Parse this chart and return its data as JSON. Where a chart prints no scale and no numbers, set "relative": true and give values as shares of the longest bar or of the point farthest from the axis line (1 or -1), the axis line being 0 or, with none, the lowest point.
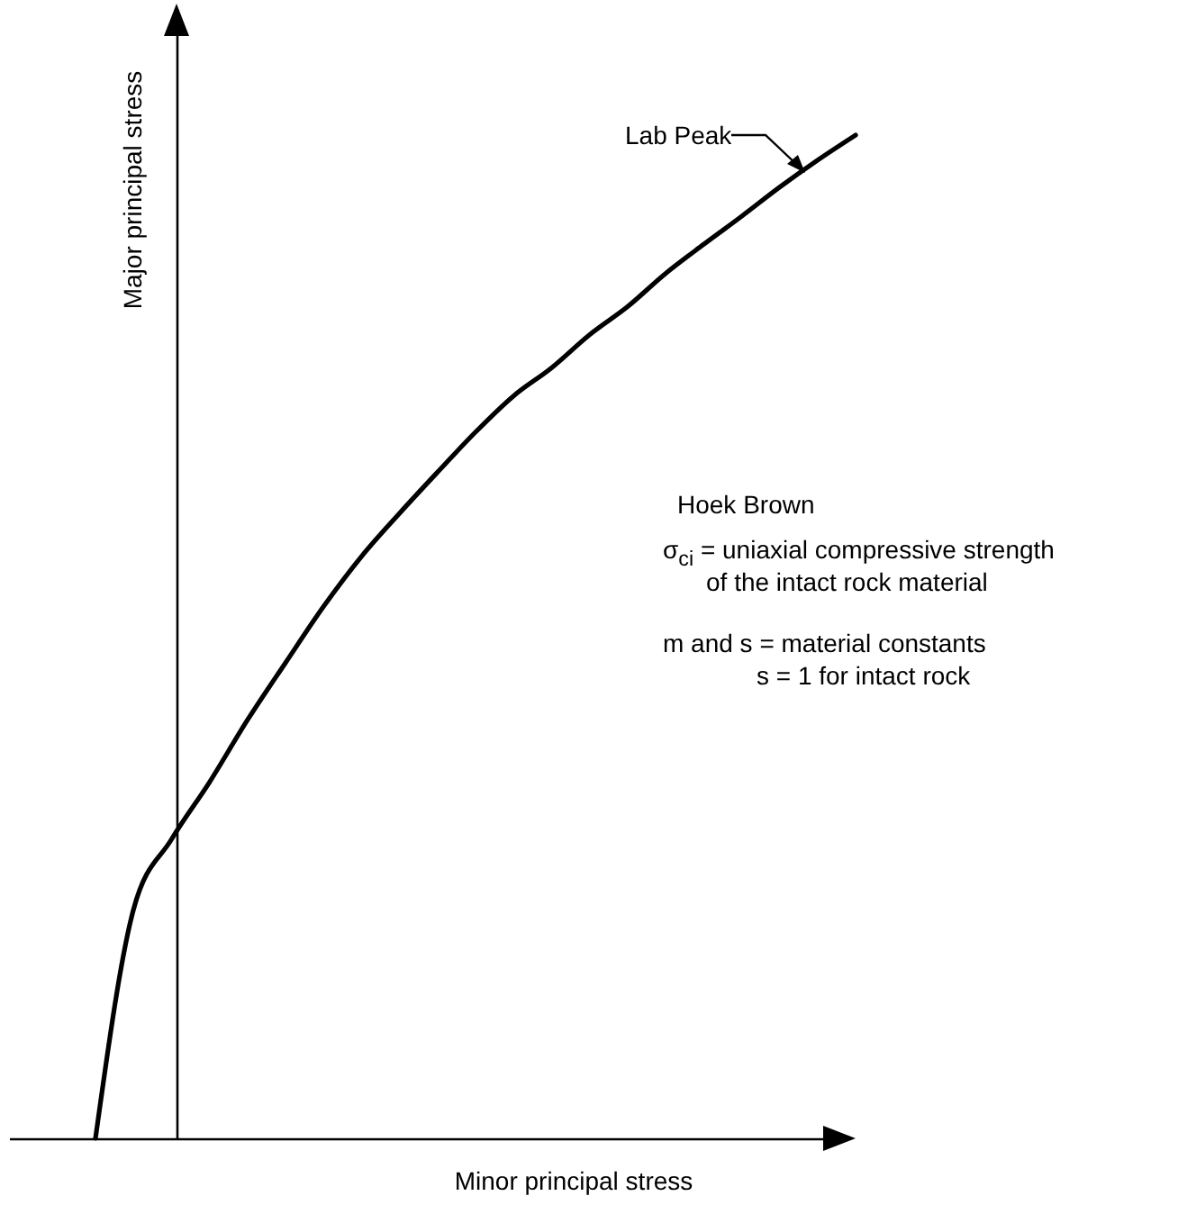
{
  "chart_data": {
    "type": "line",
    "relative": true,
    "color": "#000000",
    "xlabel": "Minor principal stress",
    "ylabel": "Major principal stress",
    "categories": [
      null,
      null,
      null,
      null,
      null,
      null,
      null,
      null,
      null,
      null,
      null,
      null,
      null,
      null,
      null,
      null,
      null,
      null,
      null,
      null,
      null
    ],
    "values": [
      0,
      0.228,
      0.298,
      0.355,
      0.417,
      0.474,
      0.53,
      0.58,
      0.623,
      0.664,
      0.704,
      0.74,
      0.768,
      0.801,
      0.829,
      0.862,
      0.891,
      0.919,
      0.948,
      0.975,
      1
    ],
    "annotations": [
      "Lab Peak",
      "Hoek Brown",
      "σ$_{ci}$ = uniaxial compressive strength",
      "of the intact rock material",
      "m and s = material constants",
      "s = 1 for intact rock"
    ]
  }
}
